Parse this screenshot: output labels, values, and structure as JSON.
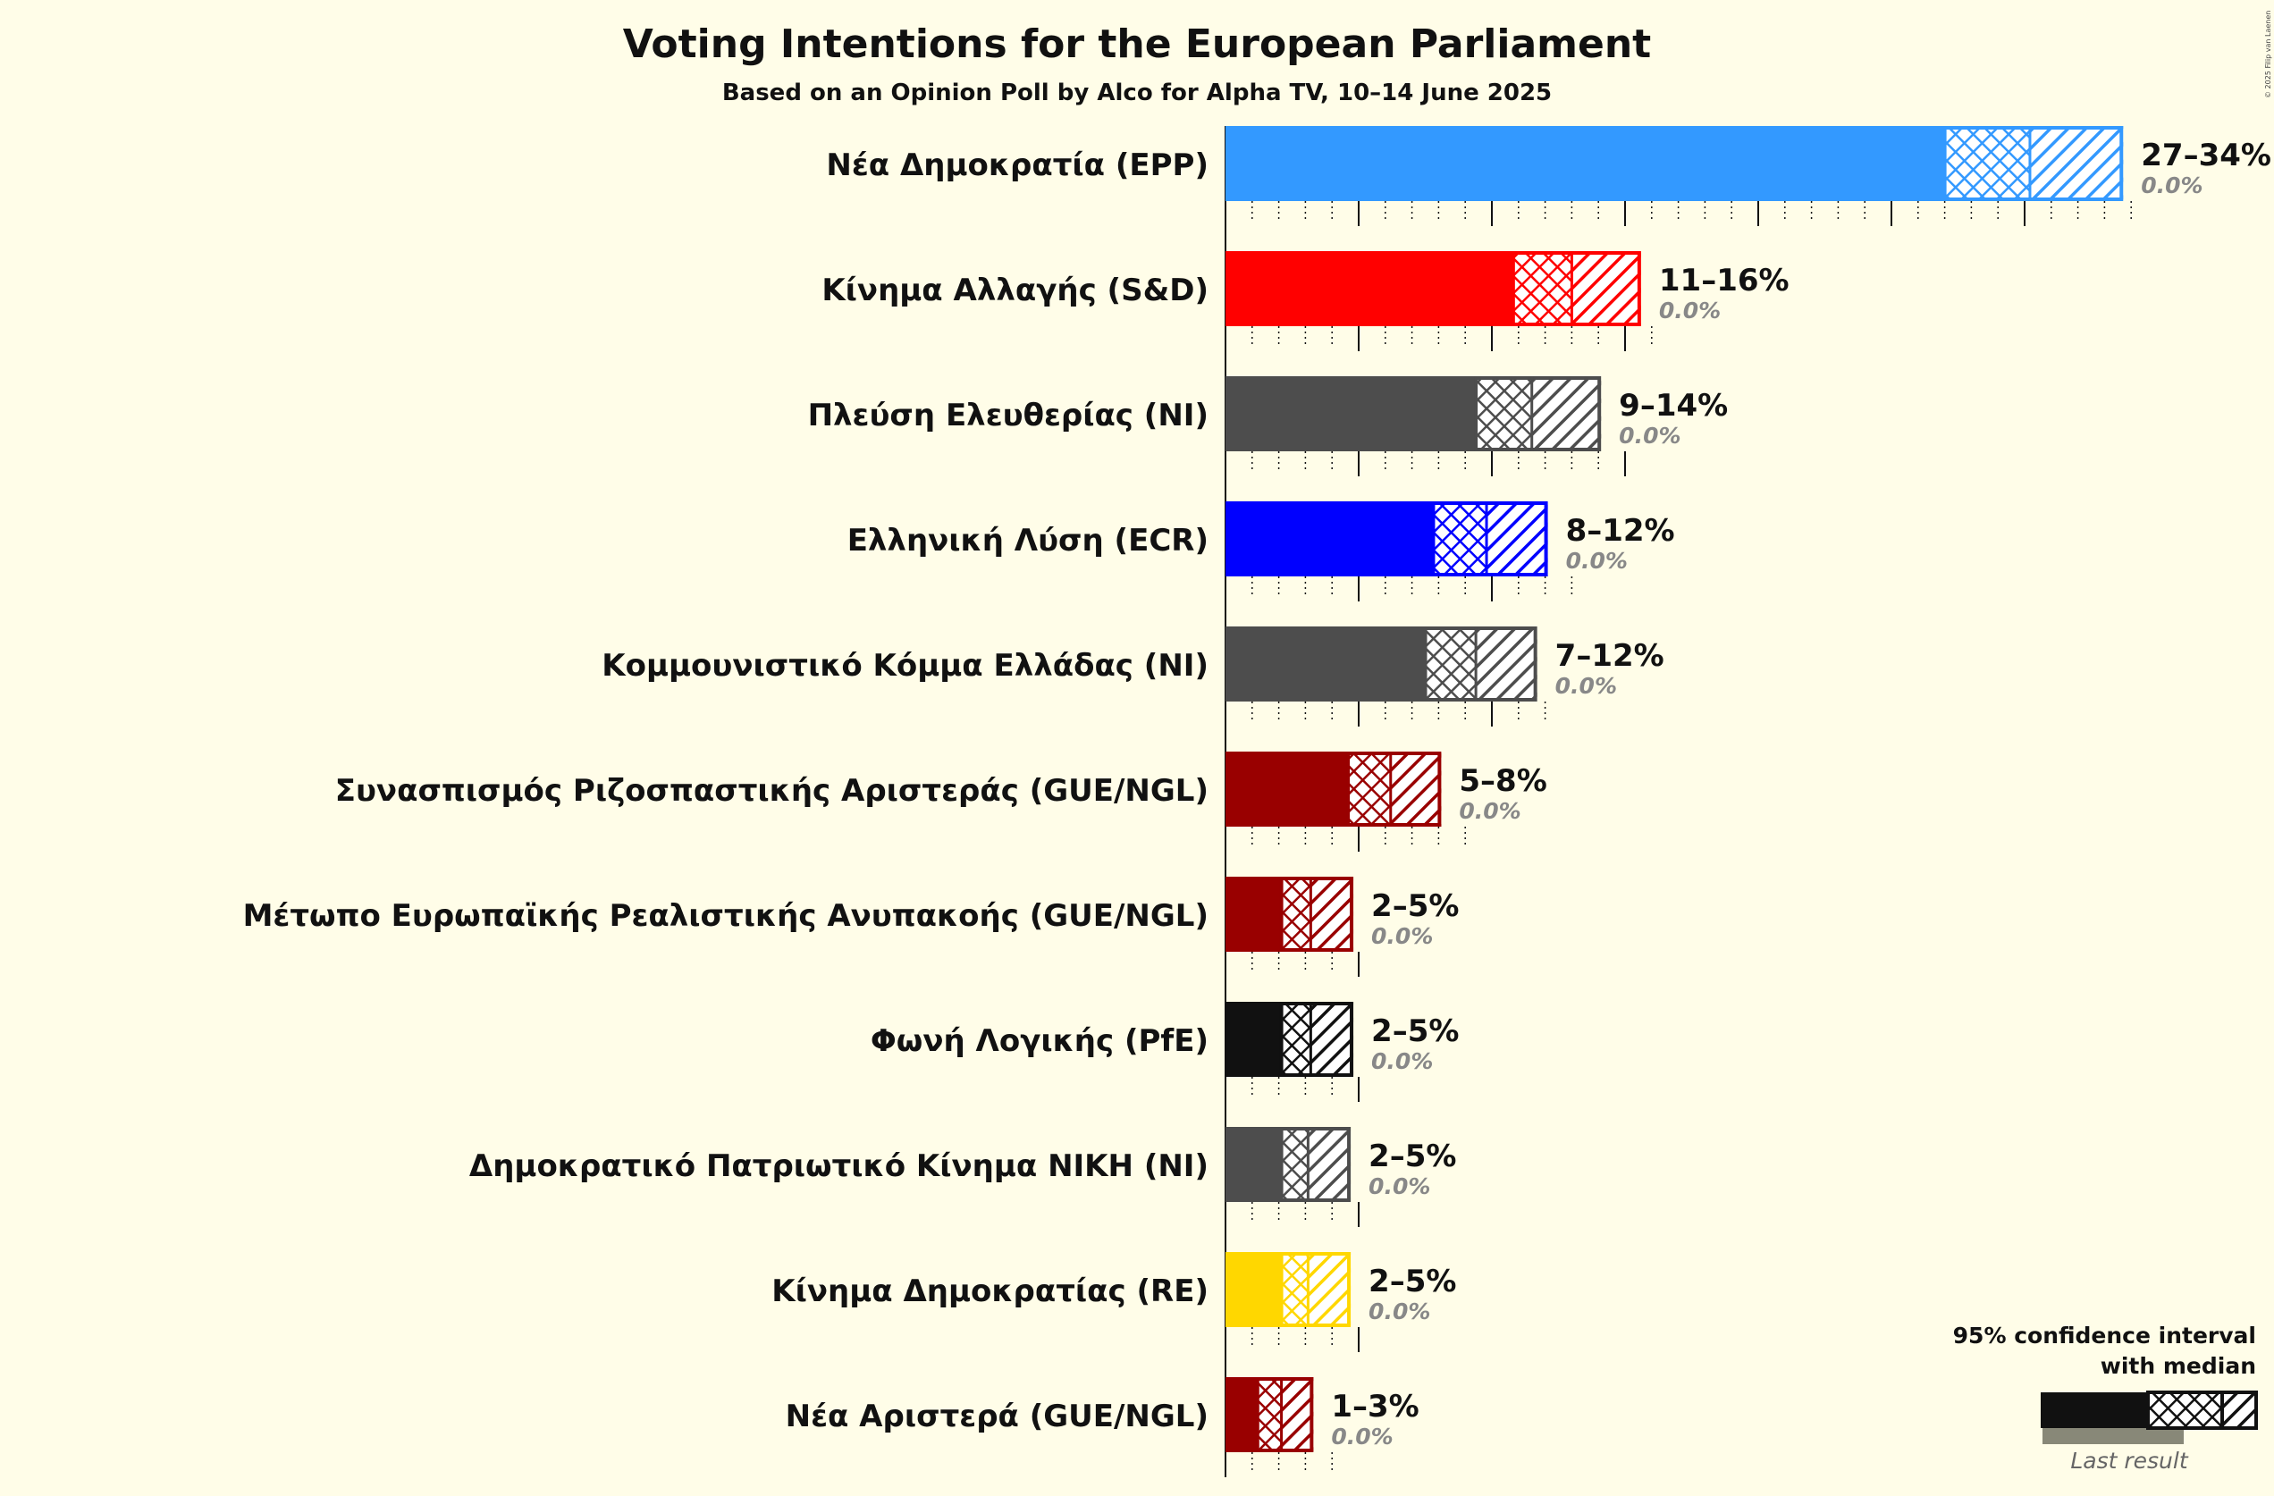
{
  "chart_data": {
    "type": "bar",
    "orientation": "horizontal",
    "title": "Voting Intentions for the European Parliament",
    "subtitle": "Based on an Opinion Poll by Alco for Alpha TV, 10–14 June 2025",
    "xlim": [
      0,
      35
    ],
    "x_unit": "%",
    "series": [
      {
        "party": "Νέα Δημοκρατία (EPP)",
        "color": "#3399ff",
        "low": 27,
        "ci80_low": 27.3,
        "median": 30.2,
        "ci80_high": 30.4,
        "high": 33.7,
        "range_label": "27–34%",
        "last_result_label": "0.0%"
      },
      {
        "party": "Κίνημα Αλλαγής (S&D)",
        "color": "#ff0000",
        "low": 10.8,
        "ci80_low": 10.8,
        "median": 13.0,
        "ci80_high": 13.0,
        "high": 15.6,
        "range_label": "11–16%",
        "last_result_label": "0.0%"
      },
      {
        "party": "Πλεύση Ελευθερίας (NI)",
        "color": "#4d4d4d",
        "low": 9.4,
        "ci80_low": 9.4,
        "median": 11.5,
        "ci80_high": 11.5,
        "high": 14.1,
        "range_label": "9–14%",
        "last_result_label": "0.0%"
      },
      {
        "party": "Ελληνική Λύση (ECR)",
        "color": "#0000ff",
        "low": 7.8,
        "ci80_low": 7.8,
        "median": 9.8,
        "ci80_high": 9.8,
        "high": 12.1,
        "range_label": "8–12%",
        "last_result_label": "0.0%"
      },
      {
        "party": "Κομμουνιστικό Κόμμα Ελλάδας (NI)",
        "color": "#4d4d4d",
        "low": 7.5,
        "ci80_low": 7.5,
        "median": 9.4,
        "ci80_high": 9.4,
        "high": 11.7,
        "range_label": "7–12%",
        "last_result_label": "0.0%"
      },
      {
        "party": "Συνασπισμός Ριζοσπαστικής Αριστεράς (GUE/NGL)",
        "color": "#990000",
        "low": 4.6,
        "ci80_low": 4.6,
        "median": 6.2,
        "ci80_high": 6.2,
        "high": 8.1,
        "range_label": "5–8%",
        "last_result_label": "0.0%"
      },
      {
        "party": "Μέτωπο Ευρωπαϊκής Ρεαλιστικής Ανυπακοής (GUE/NGL)",
        "color": "#990000",
        "low": 2.1,
        "ci80_low": 2.1,
        "median": 3.2,
        "ci80_high": 3.2,
        "high": 4.8,
        "range_label": "2–5%",
        "last_result_label": "0.0%"
      },
      {
        "party": "Φωνή Λογικής (PfE)",
        "color": "#111111",
        "low": 2.1,
        "ci80_low": 2.1,
        "median": 3.2,
        "ci80_high": 3.2,
        "high": 4.8,
        "range_label": "2–5%",
        "last_result_label": "0.0%"
      },
      {
        "party": "Δημοκρατικό Πατριωτικό Κίνημα ΝΙΚΗ (NI)",
        "color": "#4d4d4d",
        "low": 2.1,
        "ci80_low": 2.1,
        "median": 3.1,
        "ci80_high": 3.1,
        "high": 4.7,
        "range_label": "2–5%",
        "last_result_label": "0.0%"
      },
      {
        "party": "Κίνημα Δημοκρατίας (RE)",
        "color": "#ffd700",
        "low": 2.1,
        "ci80_low": 2.1,
        "median": 3.1,
        "ci80_high": 3.1,
        "high": 4.7,
        "range_label": "2–5%",
        "last_result_label": "0.0%"
      },
      {
        "party": "Νέα Αριστερά (GUE/NGL)",
        "color": "#990000",
        "low": 1.2,
        "ci80_low": 1.2,
        "median": 2.1,
        "ci80_high": 2.1,
        "high": 3.3,
        "range_label": "1–3%",
        "last_result_label": "0.0%"
      }
    ],
    "legend": {
      "title_line1": "95% confidence interval",
      "title_line2": "with median",
      "last_result": "Last result",
      "placement": "bottom-right"
    }
  },
  "copyright": "© 2025 Filip van Laenen"
}
